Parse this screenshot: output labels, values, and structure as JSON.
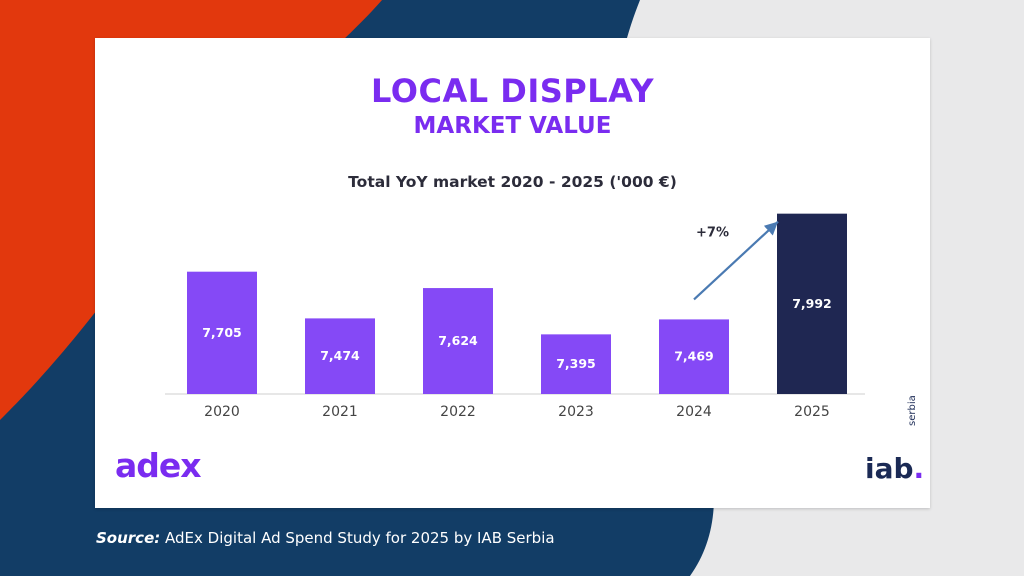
{
  "page": {
    "title_main": "LOCAL DISPLAY",
    "title_sub": "MARKET VALUE",
    "source_label": "Source:",
    "source_text": " AdEx Digital Ad Spend Study for 2025 by IAB Serbia",
    "logo_left": "adex",
    "logo_right": "iab",
    "logo_right_dot": ".",
    "logo_right_sub": "serbia"
  },
  "colors": {
    "title": "#7a2cf0",
    "bar": "#8549f6",
    "bar_highlight": "#1f2752",
    "bg_red": "#e2380d",
    "bg_navy": "#123d66"
  },
  "chart_data": {
    "type": "bar",
    "title": "Total YoY market 2020 - 2025 ('000 €)",
    "categories": [
      "2020",
      "2021",
      "2022",
      "2023",
      "2024",
      "2025"
    ],
    "values": [
      7705,
      7474,
      7624,
      7395,
      7469,
      7992
    ],
    "value_labels": [
      "7,705",
      "7,474",
      "7,624",
      "7,395",
      "7,469",
      "7,992"
    ],
    "highlight_index": 5,
    "ylim": [
      7100,
      8020
    ],
    "grid": false,
    "annotation": {
      "text": "+7%",
      "from_category": "2024",
      "to_category": "2025"
    }
  }
}
